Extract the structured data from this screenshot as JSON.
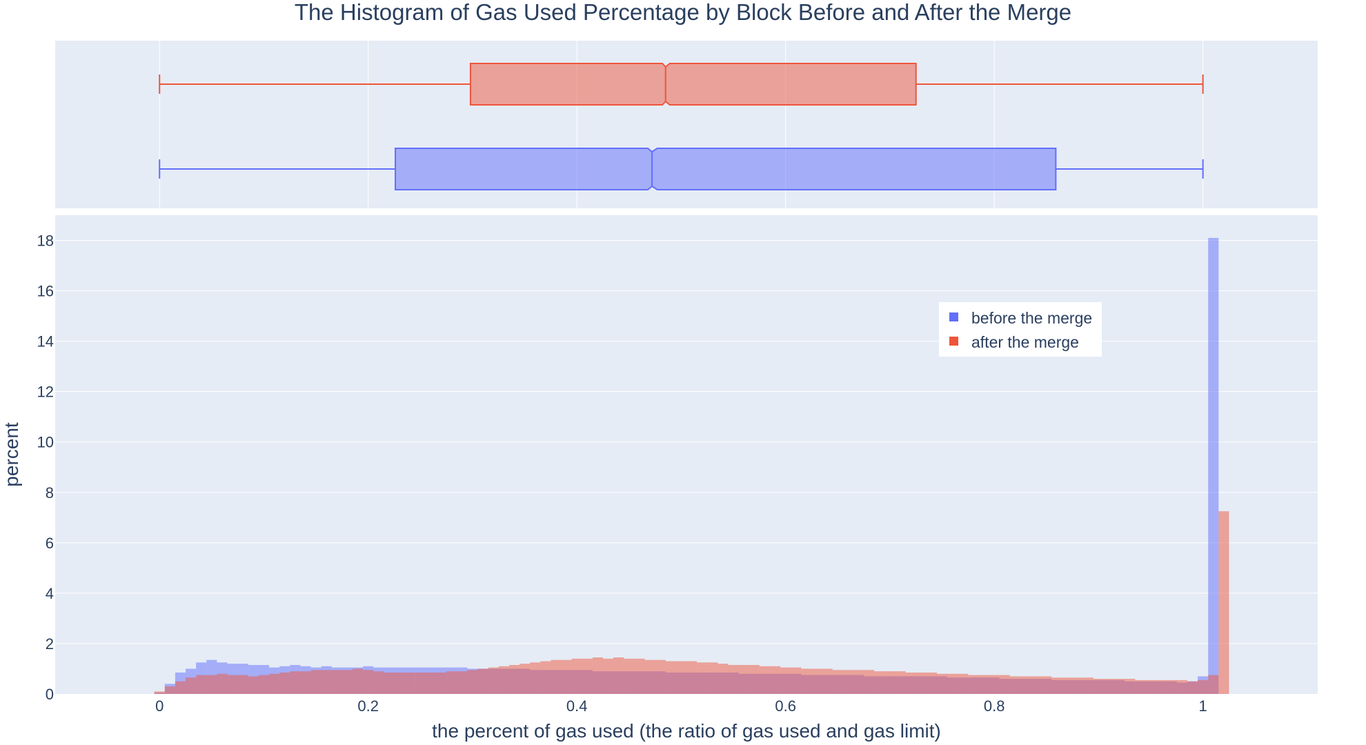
{
  "chart_data": {
    "type": "histogram",
    "title": "The Histogram of Gas Used Percentage by Block Before and After the Merge",
    "xlabel": "the percent of gas used (the ratio of gas used and gas limit)",
    "ylabel": "percent",
    "xlim": [
      -0.1,
      1.11
    ],
    "ylim": [
      0,
      19
    ],
    "x_ticks": [
      0,
      0.2,
      0.4,
      0.6,
      0.8,
      1
    ],
    "x_tick_labels": [
      "0",
      "0.2",
      "0.4",
      "0.6",
      "0.8",
      "1"
    ],
    "y_ticks": [
      0,
      2,
      4,
      6,
      8,
      10,
      12,
      14,
      16,
      18
    ],
    "y_tick_labels": [
      "0",
      "2",
      "4",
      "6",
      "8",
      "10",
      "12",
      "14",
      "16",
      "18"
    ],
    "bin_start": -0.005,
    "bin_width": 0.01,
    "grid": true,
    "legend_position": "top-right",
    "series": [
      {
        "name": "before the merge",
        "color": "#636efa",
        "values": [
          0.05,
          0.4,
          0.85,
          1.0,
          1.25,
          1.35,
          1.25,
          1.2,
          1.2,
          1.15,
          1.15,
          1.05,
          1.1,
          1.15,
          1.1,
          1.05,
          1.1,
          1.05,
          1.05,
          1.05,
          1.1,
          1.05,
          1.05,
          1.05,
          1.05,
          1.05,
          1.05,
          1.05,
          1.05,
          1.05,
          1.0,
          1.0,
          1.0,
          1.0,
          1.0,
          1.0,
          0.95,
          0.95,
          0.95,
          0.95,
          0.95,
          0.95,
          0.9,
          0.9,
          0.9,
          0.9,
          0.9,
          0.9,
          0.9,
          0.85,
          0.85,
          0.85,
          0.85,
          0.85,
          0.85,
          0.85,
          0.8,
          0.8,
          0.8,
          0.8,
          0.8,
          0.8,
          0.75,
          0.75,
          0.75,
          0.75,
          0.75,
          0.75,
          0.7,
          0.7,
          0.7,
          0.7,
          0.7,
          0.7,
          0.7,
          0.7,
          0.65,
          0.65,
          0.65,
          0.65,
          0.65,
          0.6,
          0.6,
          0.6,
          0.6,
          0.6,
          0.55,
          0.55,
          0.55,
          0.55,
          0.55,
          0.55,
          0.55,
          0.5,
          0.5,
          0.5,
          0.5,
          0.5,
          0.45,
          0.5,
          0.7,
          18.1
        ],
        "box": {
          "q1": 0.226,
          "median": 0.472,
          "q3": 0.859,
          "min": 0,
          "max": 1,
          "notch_low": 0.468,
          "notch_high": 0.477
        }
      },
      {
        "name": "after the merge",
        "color": "#ef553b",
        "values": [
          0.1,
          0.3,
          0.5,
          0.65,
          0.75,
          0.75,
          0.8,
          0.75,
          0.75,
          0.7,
          0.75,
          0.8,
          0.85,
          0.9,
          0.9,
          0.95,
          0.95,
          0.95,
          0.95,
          1.0,
          0.95,
          0.9,
          0.85,
          0.85,
          0.85,
          0.85,
          0.85,
          0.85,
          0.9,
          0.9,
          0.95,
          1.0,
          1.05,
          1.1,
          1.15,
          1.2,
          1.25,
          1.3,
          1.35,
          1.35,
          1.4,
          1.4,
          1.45,
          1.4,
          1.45,
          1.4,
          1.4,
          1.35,
          1.35,
          1.3,
          1.3,
          1.3,
          1.25,
          1.25,
          1.2,
          1.15,
          1.15,
          1.15,
          1.1,
          1.1,
          1.05,
          1.05,
          1.0,
          1.0,
          1.0,
          0.95,
          0.95,
          0.95,
          0.95,
          0.9,
          0.9,
          0.9,
          0.85,
          0.85,
          0.85,
          0.8,
          0.8,
          0.8,
          0.75,
          0.75,
          0.75,
          0.75,
          0.7,
          0.7,
          0.7,
          0.7,
          0.65,
          0.65,
          0.65,
          0.65,
          0.6,
          0.6,
          0.6,
          0.6,
          0.55,
          0.55,
          0.55,
          0.55,
          0.55,
          0.5,
          0.55,
          0.75,
          7.25
        ],
        "box": {
          "q1": 0.298,
          "median": 0.485,
          "q3": 0.725,
          "min": 0,
          "max": 1,
          "notch_low": 0.482,
          "notch_high": 0.489
        }
      }
    ]
  }
}
